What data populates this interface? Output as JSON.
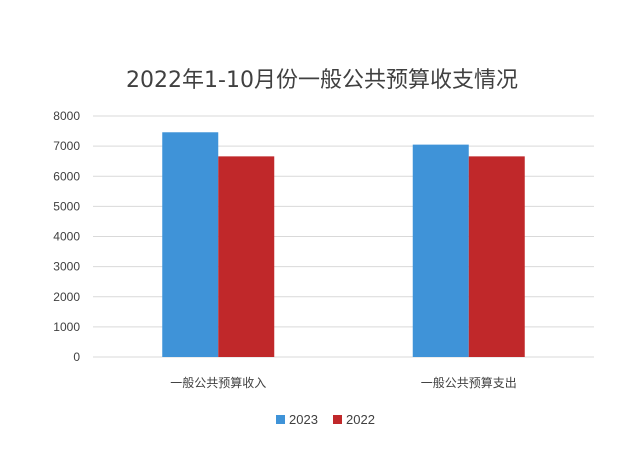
{
  "chart_data": {
    "type": "bar",
    "title": "2022年1-10月份一般公共预算收支情况",
    "categories": [
      "一般公共预算收入",
      "一般公共预算支出"
    ],
    "series": [
      {
        "name": "2023",
        "values": [
          7460,
          7050
        ],
        "color": "#3f93d8"
      },
      {
        "name": "2022",
        "values": [
          6660,
          6660
        ],
        "color": "#c0282a"
      }
    ],
    "ylim": [
      0,
      8000
    ],
    "yticks": [
      "0",
      "1000",
      "2000",
      "3000",
      "4000",
      "5000",
      "6000",
      "7000",
      "8000"
    ],
    "grid": true,
    "legend": "bottom"
  }
}
